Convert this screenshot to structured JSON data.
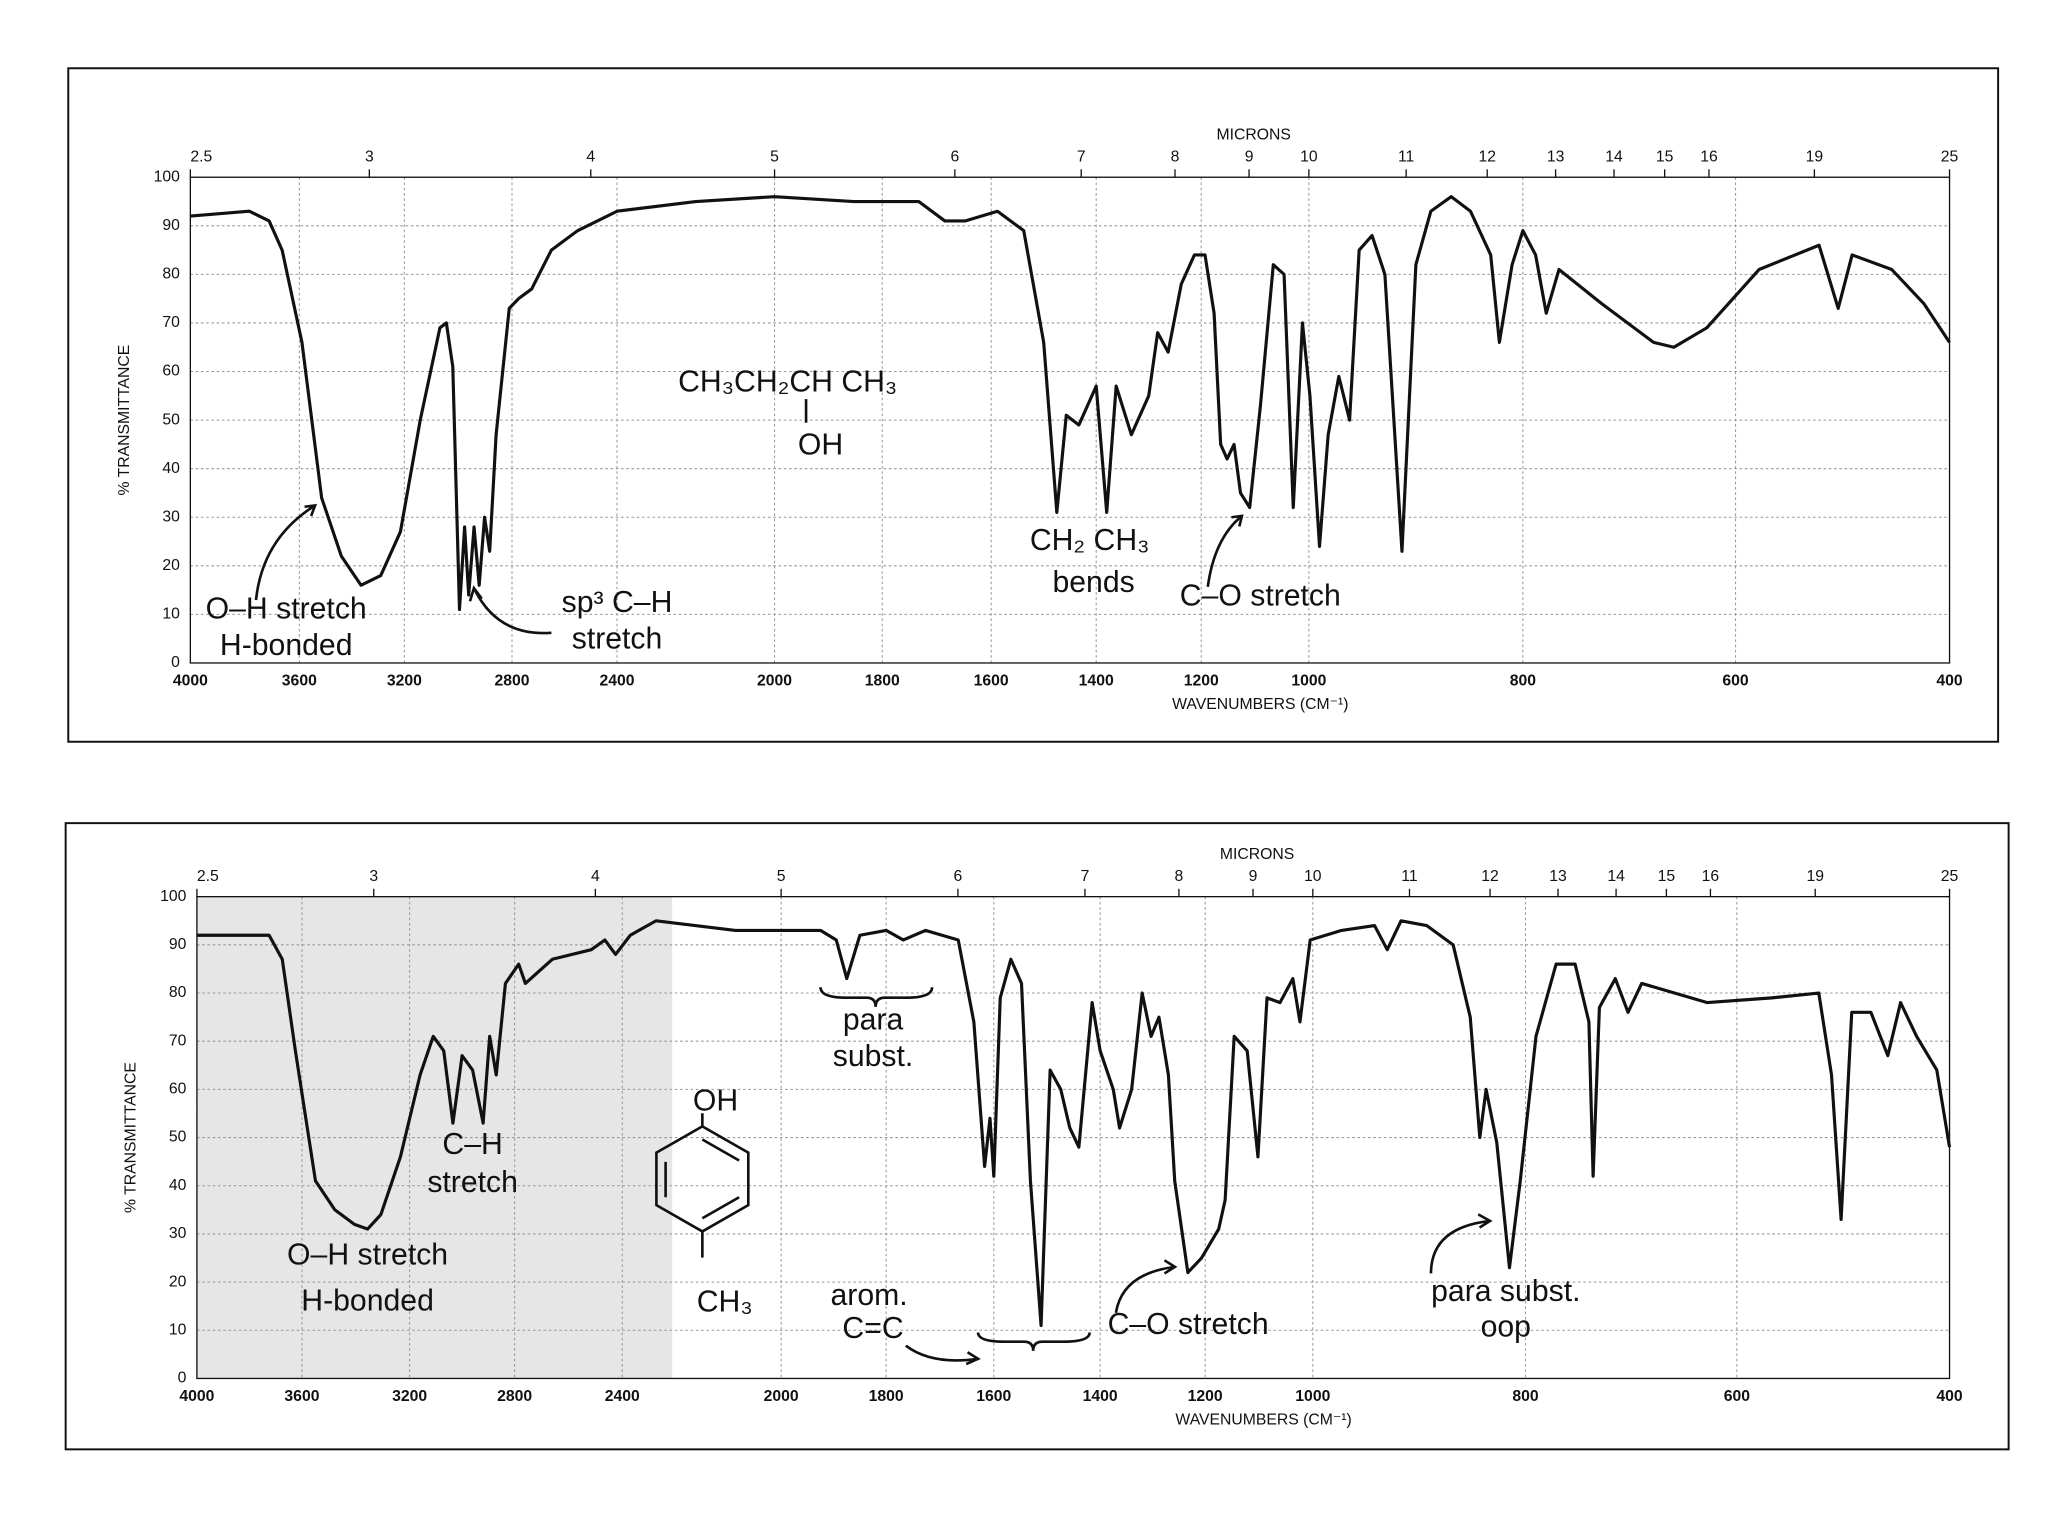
{
  "chart_data": [
    {
      "type": "line",
      "color": "#111111",
      "grid": true,
      "ylabel": "% TRANSMITTANCE",
      "xlabel": "WAVENUMBERS (CM⁻¹)",
      "x2label": "MICRONS",
      "xlim": [
        4000,
        400
      ],
      "ylim": [
        0,
        100
      ],
      "xticks": [
        4000,
        3600,
        3200,
        2800,
        2400,
        2000,
        1800,
        1600,
        1400,
        1200,
        1000,
        800,
        600,
        400
      ],
      "yticks": [
        0,
        10,
        20,
        30,
        40,
        50,
        60,
        70,
        80,
        90,
        100
      ],
      "x2ticks": [
        2.5,
        3,
        4,
        5,
        6,
        7,
        8,
        9,
        10,
        11,
        12,
        13,
        14,
        15,
        16,
        19,
        25
      ],
      "x": [
        4000,
        3783,
        3711,
        3663,
        3590,
        3515,
        3440,
        3365,
        3290,
        3215,
        3141,
        3068,
        3044,
        3020,
        2995,
        2976,
        2961,
        2941,
        2922,
        2902,
        2883,
        2859,
        2810,
        2775,
        2725,
        2650,
        2550,
        2400,
        2200,
        2000,
        1853,
        1733,
        1685,
        1648,
        1588,
        1538,
        1500,
        1475,
        1457,
        1433,
        1400,
        1380,
        1362,
        1333,
        1300,
        1283,
        1263,
        1238,
        1213,
        1193,
        1176,
        1164,
        1152,
        1139,
        1127,
        1110,
        1090,
        1066,
        1046,
        1029,
        1012,
        999,
        990,
        982,
        972,
        962,
        953,
        941,
        929,
        913,
        900,
        886,
        867,
        849,
        830,
        822,
        810,
        800,
        788,
        778,
        766,
        726,
        677,
        658,
        627,
        578,
        522,
        504,
        491,
        454,
        424,
        400
      ],
      "values": [
        92,
        93,
        91,
        85,
        66,
        34,
        22,
        16,
        18,
        27,
        50,
        69,
        70,
        61,
        11,
        28,
        14,
        28,
        16,
        30,
        23,
        47,
        73,
        75,
        77,
        85,
        89,
        93,
        95,
        96,
        95,
        95,
        91,
        91,
        93,
        89,
        66,
        31,
        51,
        49,
        57,
        31,
        57,
        47,
        55,
        68,
        64,
        78,
        84,
        84,
        72,
        45,
        42,
        45,
        35,
        32,
        53,
        82,
        80,
        32,
        70,
        55,
        24,
        47,
        59,
        50,
        85,
        88,
        80,
        23,
        82,
        93,
        96,
        93,
        84,
        66,
        82,
        89,
        84,
        72,
        81,
        74,
        66,
        65,
        69,
        81,
        86,
        73,
        84,
        81,
        74,
        66
      ],
      "annotations": [
        "CH₃CH₂CH CH₃",
        "OH",
        "O–H stretch",
        "H-bonded",
        "sp³ C–H",
        "stretch",
        "CH₂  CH₃",
        "bends",
        "C–O stretch"
      ]
    },
    {
      "type": "line",
      "color": "#111111",
      "grid": true,
      "ylabel": "% TRANSMITTANCE",
      "xlabel": "WAVENUMBERS (CM⁻¹)",
      "x2label": "MICRONS",
      "xlim": [
        4000,
        400
      ],
      "ylim": [
        0,
        100
      ],
      "xticks": [
        4000,
        3600,
        3200,
        2800,
        2400,
        2000,
        1800,
        1600,
        1400,
        1200,
        1000,
        800,
        600,
        400
      ],
      "yticks": [
        0,
        10,
        20,
        30,
        40,
        50,
        60,
        70,
        80,
        90,
        100
      ],
      "x2ticks": [
        2.5,
        3,
        4,
        5,
        6,
        7,
        8,
        9,
        10,
        11,
        12,
        13,
        14,
        15,
        16,
        19,
        25
      ],
      "x": [
        4000,
        3725,
        3675,
        3625,
        3550,
        3478,
        3405,
        3356,
        3307,
        3234,
        3160,
        3110,
        3070,
        3035,
        3000,
        2960,
        2920,
        2895,
        2870,
        2835,
        2785,
        2760,
        2660,
        2515,
        2465,
        2425,
        2380,
        2315,
        2115,
        1925,
        1895,
        1875,
        1850,
        1800,
        1768,
        1727,
        1666,
        1637,
        1617,
        1607,
        1600,
        1588,
        1568,
        1548,
        1531,
        1511,
        1494,
        1474,
        1457,
        1440,
        1415,
        1400,
        1375,
        1363,
        1340,
        1320,
        1303,
        1288,
        1270,
        1258,
        1233,
        1207,
        1175,
        1163,
        1146,
        1122,
        1102,
        1085,
        1061,
        1037,
        1024,
        1005,
        973,
        942,
        930,
        917,
        893,
        868,
        852,
        843,
        837,
        827,
        815,
        805,
        790,
        771,
        753,
        740,
        736,
        730,
        715,
        703,
        690,
        628,
        567,
        523,
        511,
        502,
        492,
        474,
        458,
        446,
        431,
        412,
        400
      ],
      "values": [
        92,
        92,
        87,
        68,
        41,
        35,
        32,
        31,
        34,
        46,
        63,
        71,
        68,
        53,
        67,
        64,
        53,
        71,
        63,
        82,
        86,
        82,
        87,
        89,
        91,
        88,
        92,
        95,
        93,
        93,
        91,
        83,
        92,
        93,
        91,
        93,
        91,
        74,
        44,
        54,
        42,
        79,
        87,
        82,
        41,
        11,
        64,
        60,
        52,
        48,
        78,
        68,
        60,
        52,
        60,
        80,
        71,
        75,
        63,
        41,
        22,
        25,
        31,
        37,
        71,
        68,
        46,
        79,
        78,
        83,
        74,
        91,
        93,
        94,
        89,
        95,
        94,
        90,
        75,
        50,
        60,
        49,
        23,
        41,
        71,
        86,
        86,
        74,
        42,
        77,
        83,
        76,
        82,
        78,
        79,
        80,
        63,
        33,
        76,
        76,
        67,
        78,
        71,
        64,
        48
      ],
      "annotations": [
        "para",
        "subst.",
        "OH",
        "CH₃",
        "C–H",
        "stretch",
        "O–H stretch",
        "H-bonded",
        "arom.",
        "C=C",
        "C–O stretch",
        "para subst.",
        "oop"
      ]
    }
  ]
}
